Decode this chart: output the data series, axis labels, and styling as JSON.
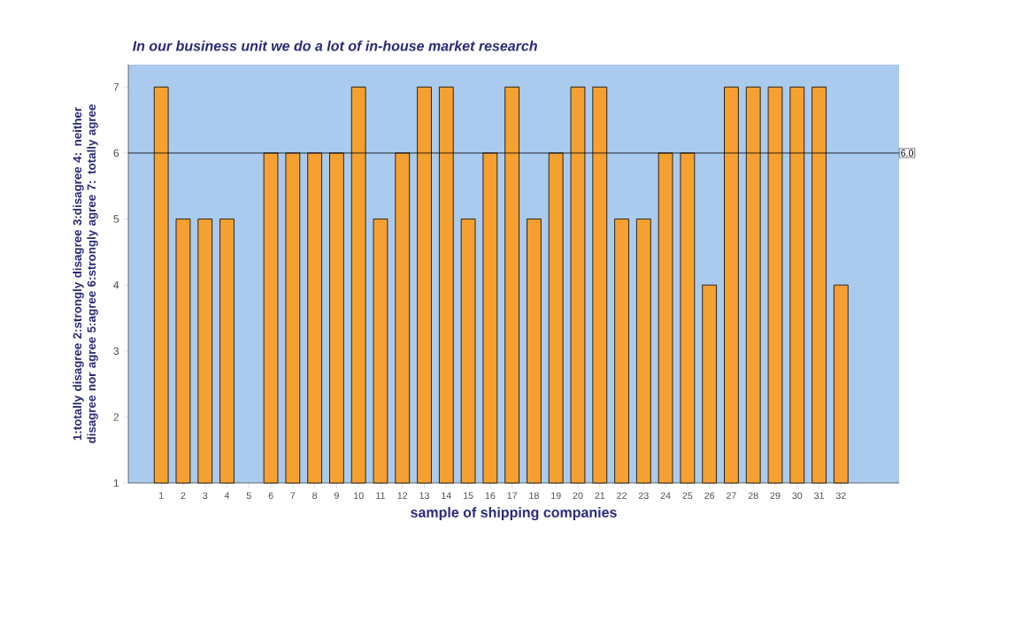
{
  "chart_data": {
    "type": "bar",
    "title": "In our business unit we do a lot of in-house market research",
    "xlabel": "sample of shipping companies",
    "ylabel": "1:totally disagree 2:strongly disagree 3:disagree 4: neither disagree nor agree 5:agree 6:strongly agree 7: totally agree",
    "categories": [
      "1",
      "2",
      "3",
      "4",
      "5",
      "6",
      "7",
      "8",
      "9",
      "10",
      "11",
      "12",
      "13",
      "14",
      "15",
      "16",
      "17",
      "18",
      "19",
      "20",
      "21",
      "22",
      "23",
      "24",
      "25",
      "26",
      "27",
      "28",
      "29",
      "30",
      "31",
      "32"
    ],
    "values": [
      7,
      5,
      5,
      5,
      null,
      6,
      6,
      6,
      6,
      7,
      5,
      6,
      7,
      7,
      5,
      6,
      7,
      5,
      6,
      7,
      7,
      5,
      5,
      6,
      6,
      4,
      7,
      7,
      7,
      7,
      7,
      4
    ],
    "color": "#f5a030",
    "ylim": [
      1,
      7.34
    ],
    "yticks": [
      1,
      2,
      3,
      4,
      5,
      6,
      7
    ],
    "ref_lines": [
      {
        "axis": "y",
        "value": 6,
        "label": "6.0",
        "color": "#000000"
      }
    ],
    "grid": false
  }
}
